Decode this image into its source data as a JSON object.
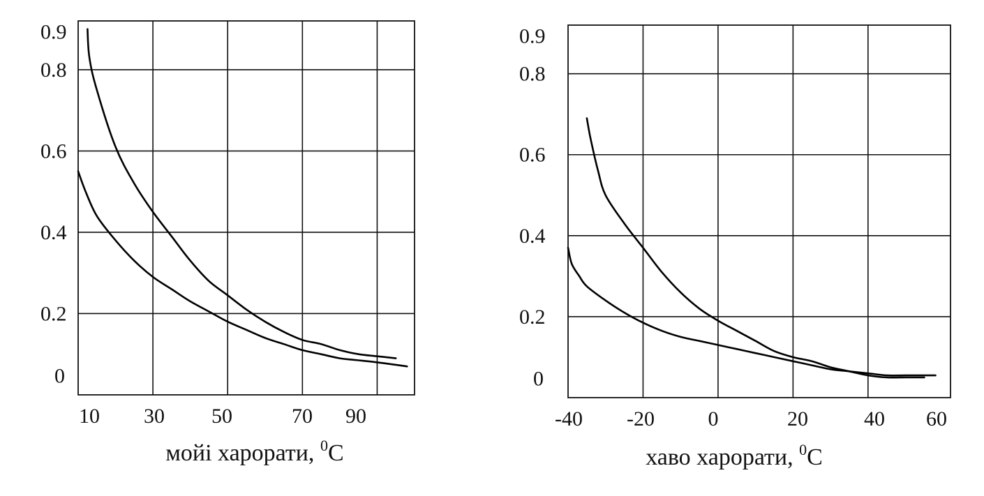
{
  "chart_data": [
    {
      "type": "line",
      "xlabel": "мойi харорати, ",
      "xlabel_sup": "0",
      "xlabel_unit": "C",
      "x_ticks": [
        "10",
        "30",
        "50",
        "70",
        "90"
      ],
      "y_ticks": [
        "0",
        "0.2",
        "0.4",
        "0.6",
        "0.8",
        "0.9"
      ],
      "xlim": [
        10,
        100
      ],
      "ylim": [
        0,
        0.92
      ],
      "grid": true,
      "series": [
        {
          "points": [
            [
              12.5,
              0.9
            ],
            [
              13,
              0.83
            ],
            [
              15,
              0.75
            ],
            [
              20,
              0.61
            ],
            [
              25,
              0.52
            ],
            [
              30,
              0.45
            ],
            [
              35,
              0.39
            ],
            [
              40,
              0.33
            ],
            [
              45,
              0.28
            ],
            [
              50,
              0.245
            ],
            [
              55,
              0.21
            ],
            [
              60,
              0.18
            ],
            [
              65,
              0.155
            ],
            [
              70,
              0.135
            ],
            [
              75,
              0.125
            ],
            [
              80,
              0.11
            ],
            [
              85,
              0.1
            ],
            [
              90,
              0.095
            ],
            [
              95,
              0.09
            ]
          ]
        },
        {
          "points": [
            [
              10,
              0.55
            ],
            [
              12,
              0.5
            ],
            [
              15,
              0.44
            ],
            [
              20,
              0.38
            ],
            [
              25,
              0.33
            ],
            [
              30,
              0.29
            ],
            [
              35,
              0.26
            ],
            [
              40,
              0.23
            ],
            [
              45,
              0.205
            ],
            [
              50,
              0.18
            ],
            [
              55,
              0.16
            ],
            [
              60,
              0.14
            ],
            [
              65,
              0.125
            ],
            [
              70,
              0.11
            ],
            [
              75,
              0.1
            ],
            [
              80,
              0.09
            ],
            [
              85,
              0.085
            ],
            [
              90,
              0.08
            ],
            [
              98,
              0.07
            ]
          ]
        }
      ]
    },
    {
      "type": "line",
      "xlabel": "хаво харорати, ",
      "xlabel_sup": "0",
      "xlabel_unit": "C",
      "x_ticks": [
        "-40",
        "-20",
        "0",
        "20",
        "40",
        "60"
      ],
      "y_ticks": [
        "0",
        "0.2",
        "0.4",
        "0.6",
        "0.8",
        "0.9"
      ],
      "xlim": [
        -40,
        62
      ],
      "ylim": [
        0,
        0.92
      ],
      "grid": true,
      "series": [
        {
          "points": [
            [
              -35,
              0.69
            ],
            [
              -34,
              0.64
            ],
            [
              -32,
              0.56
            ],
            [
              -30,
              0.5
            ],
            [
              -25,
              0.43
            ],
            [
              -20,
              0.37
            ],
            [
              -15,
              0.31
            ],
            [
              -10,
              0.26
            ],
            [
              -5,
              0.22
            ],
            [
              0,
              0.19
            ],
            [
              5,
              0.165
            ],
            [
              10,
              0.14
            ],
            [
              15,
              0.115
            ],
            [
              20,
              0.1
            ],
            [
              25,
              0.09
            ],
            [
              30,
              0.075
            ],
            [
              35,
              0.065
            ],
            [
              40,
              0.055
            ],
            [
              45,
              0.05
            ],
            [
              50,
              0.05
            ],
            [
              55,
              0.05
            ]
          ]
        },
        {
          "points": [
            [
              -40,
              0.37
            ],
            [
              -39,
              0.33
            ],
            [
              -37,
              0.3
            ],
            [
              -35,
              0.275
            ],
            [
              -30,
              0.24
            ],
            [
              -25,
              0.21
            ],
            [
              -20,
              0.185
            ],
            [
              -15,
              0.165
            ],
            [
              -10,
              0.15
            ],
            [
              -5,
              0.14
            ],
            [
              0,
              0.13
            ],
            [
              5,
              0.12
            ],
            [
              10,
              0.11
            ],
            [
              15,
              0.1
            ],
            [
              20,
              0.09
            ],
            [
              25,
              0.08
            ],
            [
              30,
              0.07
            ],
            [
              35,
              0.065
            ],
            [
              40,
              0.06
            ],
            [
              45,
              0.055
            ],
            [
              50,
              0.055
            ],
            [
              58,
              0.055
            ]
          ]
        }
      ]
    }
  ]
}
